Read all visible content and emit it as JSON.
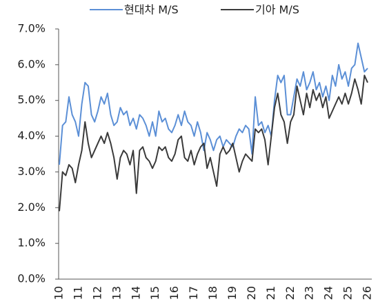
{
  "chart_data": {
    "type": "line",
    "categories": [
      "10",
      null,
      null,
      null,
      null,
      null,
      "11",
      null,
      null,
      null,
      null,
      null,
      "12",
      null,
      null,
      null,
      null,
      null,
      "13",
      null,
      null,
      null,
      null,
      null,
      "14",
      null,
      null,
      null,
      null,
      null,
      "15",
      null,
      null,
      null,
      null,
      null,
      "16",
      null,
      null,
      null,
      null,
      null,
      "17",
      null,
      null,
      null,
      null,
      null,
      "18",
      null,
      null,
      null,
      null,
      null,
      "19",
      null,
      null,
      null,
      null,
      null,
      "20",
      null,
      null,
      null,
      null,
      null,
      "21",
      null,
      null,
      null,
      null,
      null,
      "22",
      null,
      null,
      null,
      null,
      null,
      "23",
      null,
      null,
      null,
      null,
      null,
      "24",
      null,
      null,
      null,
      null,
      null,
      "25",
      null,
      null,
      null,
      null,
      null,
      "26"
    ],
    "series": [
      {
        "name": "현대차 M/S",
        "color": "#5b8fd6",
        "values": [
          3.2,
          4.3,
          4.4,
          5.1,
          4.6,
          4.4,
          4.0,
          4.9,
          5.5,
          5.4,
          4.6,
          4.4,
          4.7,
          5.1,
          4.9,
          5.2,
          4.6,
          4.3,
          4.4,
          4.8,
          4.6,
          4.7,
          4.3,
          4.5,
          4.2,
          4.6,
          4.5,
          4.3,
          4.0,
          4.4,
          4.0,
          4.7,
          4.4,
          4.5,
          4.2,
          4.1,
          4.3,
          4.6,
          4.3,
          4.7,
          4.4,
          4.3,
          4.0,
          4.4,
          4.1,
          3.6,
          4.1,
          3.9,
          3.6,
          3.9,
          4.0,
          3.7,
          3.9,
          3.8,
          3.7,
          4.0,
          4.2,
          4.1,
          4.3,
          4.2,
          3.5,
          5.1,
          4.3,
          4.4,
          4.1,
          4.3,
          4.0,
          5.0,
          5.7,
          5.5,
          5.7,
          4.6,
          4.6,
          5.1,
          5.6,
          5.4,
          5.8,
          5.3,
          5.5,
          5.8,
          5.3,
          5.5,
          5.1,
          5.4,
          5.0,
          5.7,
          5.4,
          6.0,
          5.6,
          5.8,
          5.4,
          5.9,
          6.0,
          6.6,
          6.2,
          5.8,
          5.9
        ]
      },
      {
        "name": "기아 M/S",
        "color": "#3a3a3a",
        "values": [
          1.9,
          3.0,
          2.9,
          3.2,
          3.1,
          2.7,
          3.2,
          3.6,
          4.4,
          3.8,
          3.4,
          3.6,
          3.8,
          4.0,
          3.8,
          4.1,
          3.8,
          3.4,
          2.8,
          3.4,
          3.6,
          3.5,
          3.2,
          3.6,
          2.4,
          3.6,
          3.7,
          3.4,
          3.3,
          3.1,
          3.3,
          3.7,
          3.6,
          3.7,
          3.4,
          3.3,
          3.5,
          3.9,
          4.0,
          3.4,
          3.3,
          3.6,
          3.2,
          3.5,
          3.7,
          3.8,
          3.1,
          3.4,
          3.0,
          2.6,
          3.5,
          3.7,
          3.5,
          3.6,
          3.8,
          3.4,
          3.0,
          3.3,
          3.5,
          3.4,
          3.3,
          4.2,
          4.1,
          4.2,
          3.9,
          3.2,
          4.0,
          4.8,
          5.2,
          4.6,
          4.4,
          3.8,
          4.4,
          4.6,
          5.4,
          5.0,
          4.6,
          5.2,
          4.8,
          5.3,
          5.0,
          5.2,
          4.8,
          5.1,
          4.5,
          4.7,
          4.9,
          5.1,
          4.9,
          5.2,
          4.9,
          5.2,
          5.6,
          5.3,
          4.9,
          5.7,
          5.5
        ]
      }
    ],
    "ylim": [
      0,
      7
    ],
    "yticks": [
      {
        "value": 0,
        "label": "0.0%"
      },
      {
        "value": 1,
        "label": "1.0%"
      },
      {
        "value": 2,
        "label": "2.0%"
      },
      {
        "value": 3,
        "label": "3.0%"
      },
      {
        "value": 4,
        "label": "4.0%"
      },
      {
        "value": 5,
        "label": "5.0%"
      },
      {
        "value": 6,
        "label": "6.0%"
      },
      {
        "value": 7,
        "label": "7.0%"
      }
    ],
    "legend": "top"
  }
}
